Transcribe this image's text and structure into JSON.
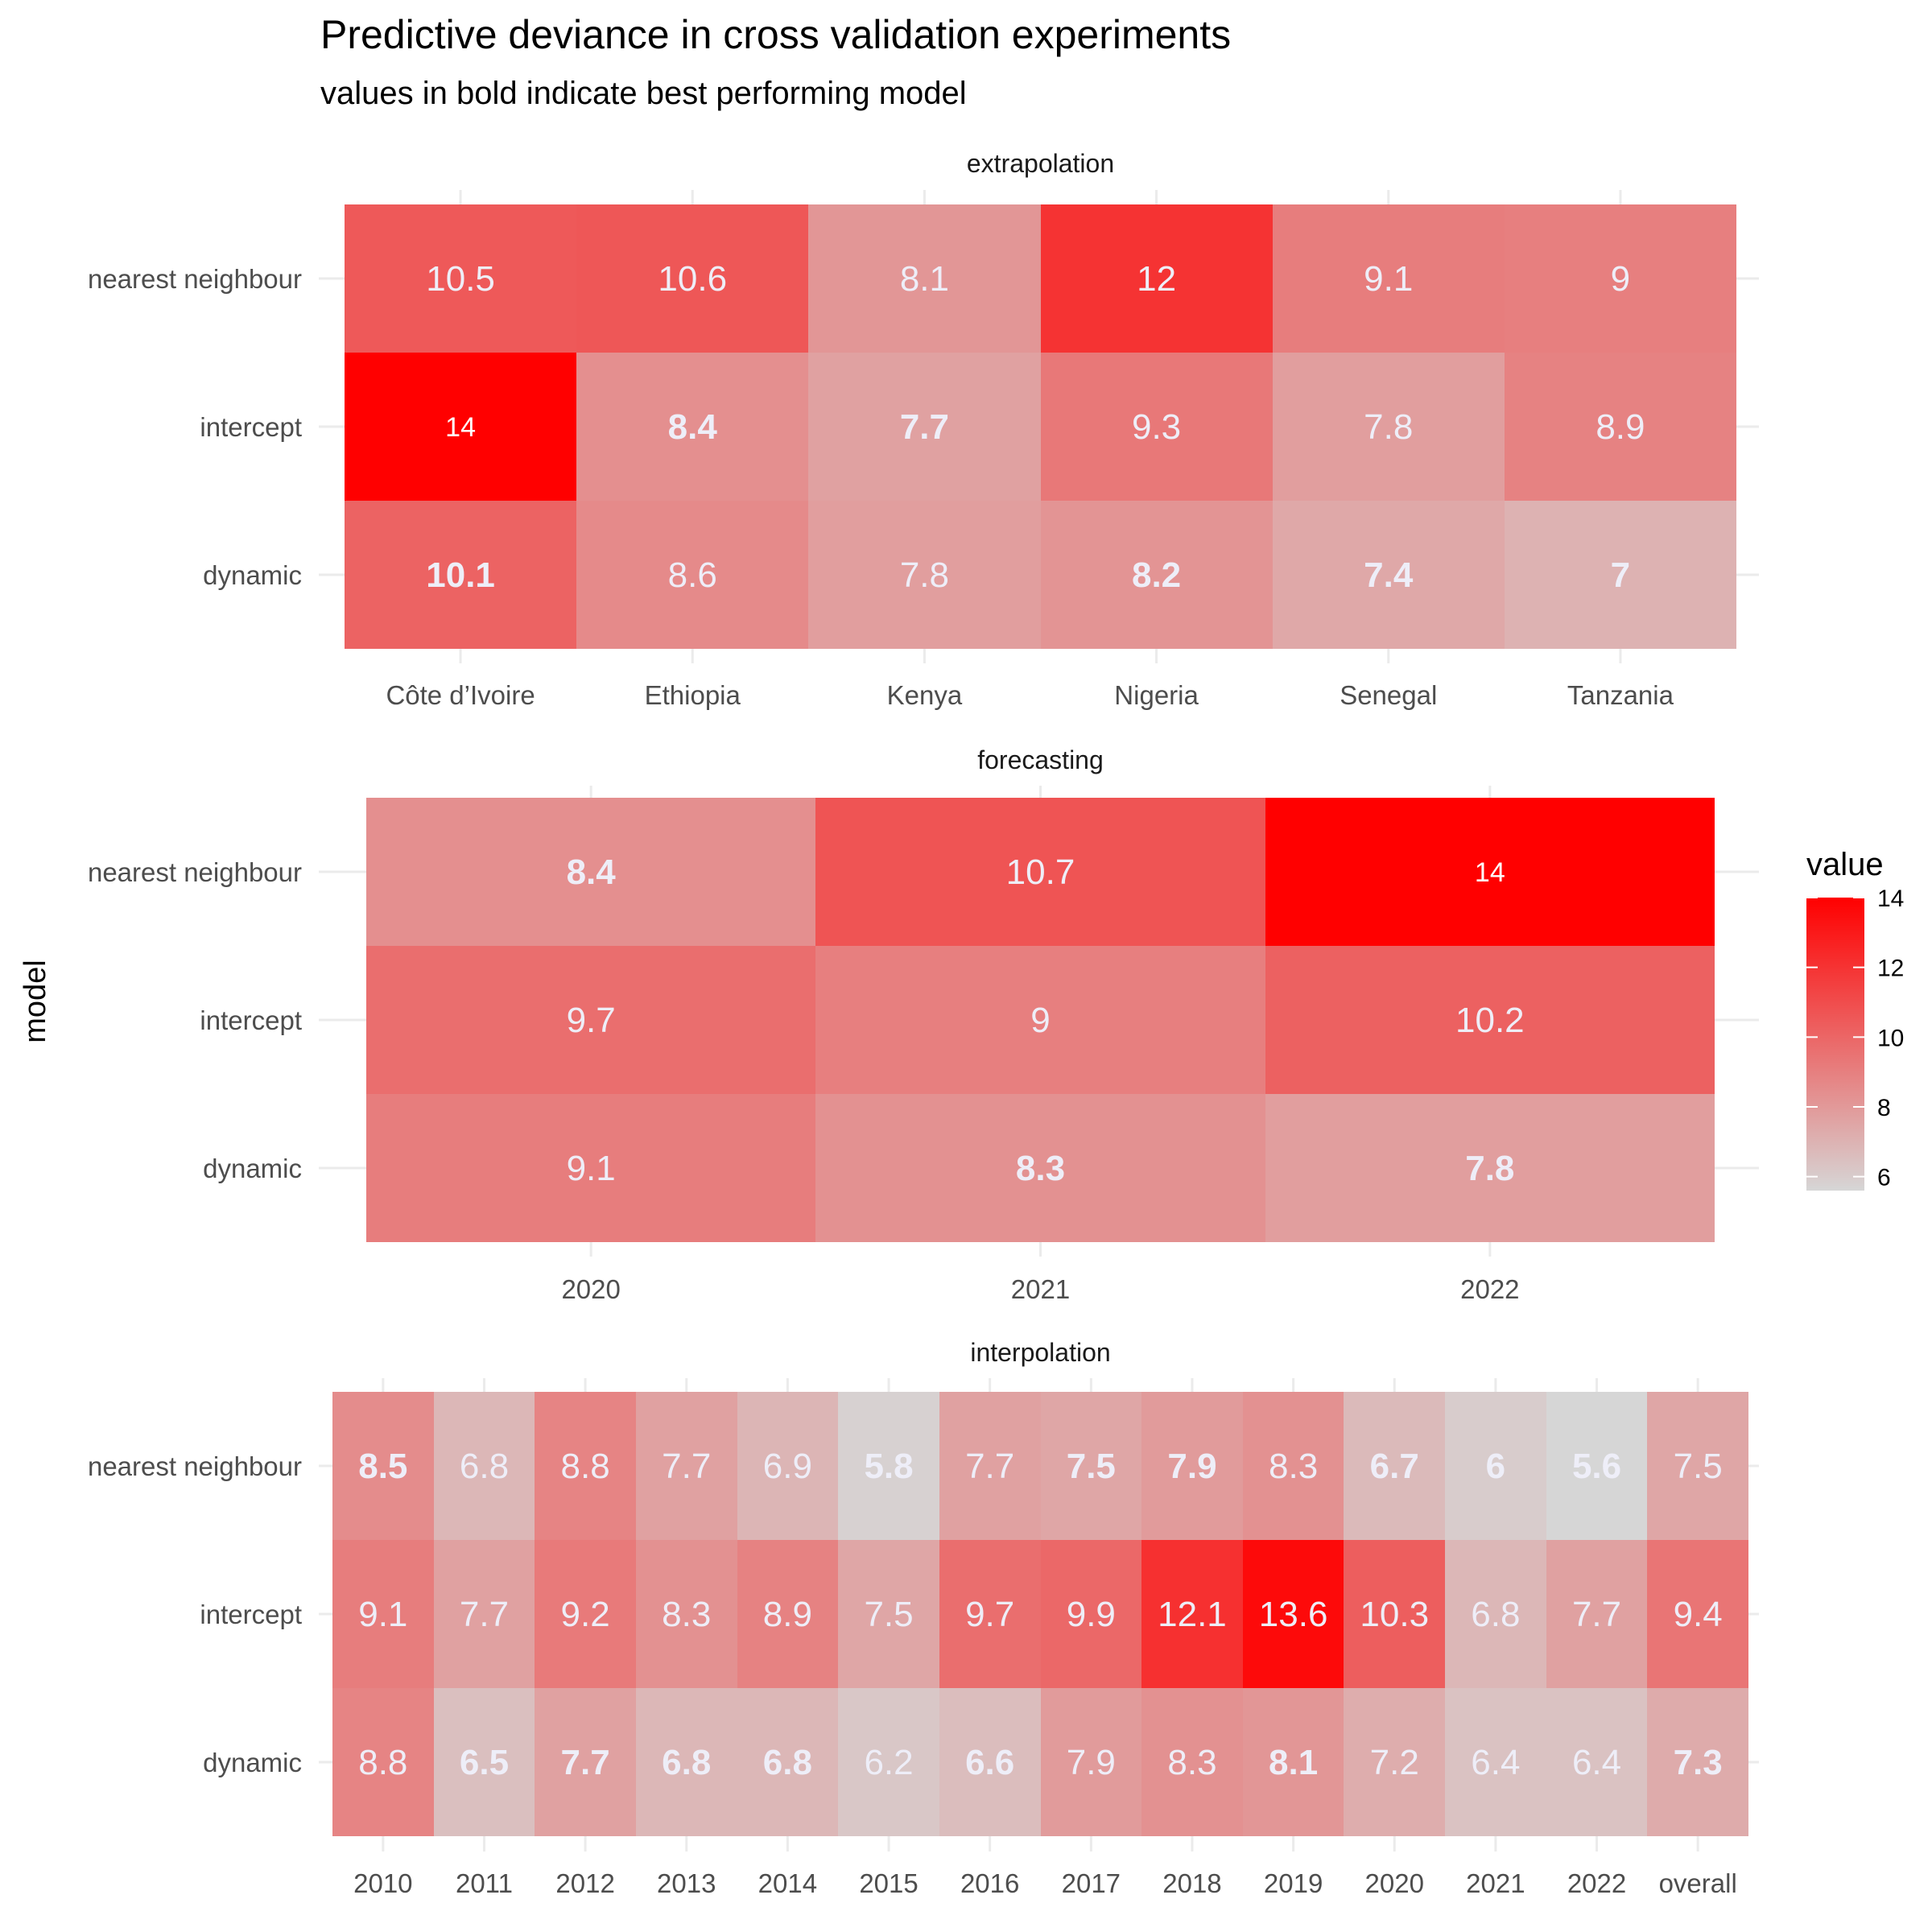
{
  "chart_data": {
    "type": "heatmap",
    "title": "Predictive deviance in cross validation experiments",
    "subtitle": "values in bold indicate best performing model",
    "ylabel": "model",
    "rows": [
      "nearest neighbour",
      "intercept",
      "dynamic"
    ],
    "legend": {
      "title": "value",
      "range": [
        5.6,
        14
      ],
      "ticks": [
        6,
        8,
        10,
        12,
        14
      ],
      "low_color": "#d6d6d6",
      "high_color": "#ff0000",
      "placement": "right"
    },
    "panels": [
      {
        "title": "extrapolation",
        "columns": [
          "Côte d’Ivoire",
          "Ethiopia",
          "Kenya",
          "Nigeria",
          "Senegal",
          "Tanzania"
        ],
        "values": [
          [
            10.5,
            10.6,
            8.1,
            12,
            9.1,
            9
          ],
          [
            14,
            8.4,
            7.7,
            9.3,
            7.8,
            8.9
          ],
          [
            10.1,
            8.6,
            7.8,
            8.2,
            7.4,
            7
          ]
        ],
        "bold": [
          [
            false,
            false,
            false,
            false,
            false,
            false
          ],
          [
            false,
            true,
            true,
            false,
            false,
            false
          ],
          [
            true,
            false,
            false,
            true,
            true,
            true
          ]
        ]
      },
      {
        "title": "forecasting",
        "columns": [
          "2020",
          "2021",
          "2022"
        ],
        "values": [
          [
            8.4,
            10.7,
            14
          ],
          [
            9.7,
            9,
            10.2
          ],
          [
            9.1,
            8.3,
            7.8
          ]
        ],
        "bold": [
          [
            true,
            false,
            false
          ],
          [
            false,
            false,
            false
          ],
          [
            false,
            true,
            true
          ]
        ]
      },
      {
        "title": "interpolation",
        "columns": [
          "2010",
          "2011",
          "2012",
          "2013",
          "2014",
          "2015",
          "2016",
          "2017",
          "2018",
          "2019",
          "2020",
          "2021",
          "2022",
          "overall"
        ],
        "values": [
          [
            8.5,
            6.8,
            8.8,
            7.7,
            6.9,
            5.8,
            7.7,
            7.5,
            7.9,
            8.3,
            6.7,
            6,
            5.6,
            7.5
          ],
          [
            9.1,
            7.7,
            9.2,
            8.3,
            8.9,
            7.5,
            9.7,
            9.9,
            12.1,
            13.6,
            10.3,
            6.8,
            7.7,
            9.4
          ],
          [
            8.8,
            6.5,
            7.7,
            6.8,
            6.8,
            6.2,
            6.6,
            7.9,
            8.3,
            8.1,
            7.2,
            6.4,
            6.4,
            7.3
          ]
        ],
        "bold": [
          [
            true,
            false,
            false,
            false,
            false,
            true,
            false,
            true,
            true,
            false,
            true,
            true,
            true,
            false
          ],
          [
            false,
            false,
            false,
            false,
            false,
            false,
            false,
            false,
            false,
            false,
            false,
            false,
            false,
            false
          ],
          [
            false,
            true,
            true,
            true,
            true,
            false,
            true,
            false,
            false,
            true,
            false,
            false,
            false,
            true
          ]
        ]
      }
    ]
  }
}
